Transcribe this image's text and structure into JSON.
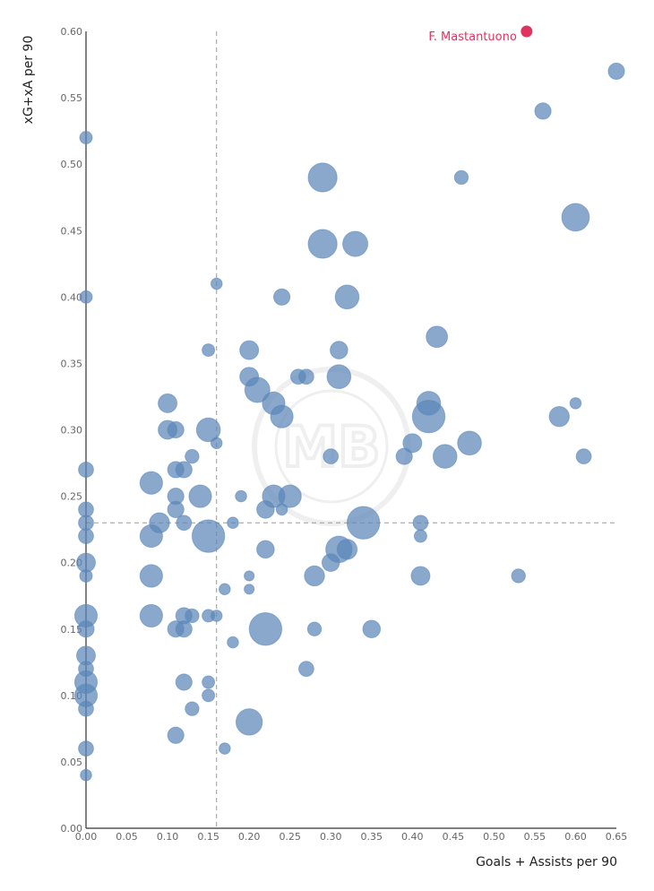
{
  "colors": {
    "point": "#5b86b8",
    "highlight": "#e0335e",
    "axis": "#333333",
    "refline": "#9a9a9a"
  },
  "watermark": {
    "text": "MB"
  },
  "chart_data": {
    "type": "scatter",
    "title": "",
    "xlabel": "Goals + Assists per 90",
    "ylabel": "xG+xA per 90",
    "xlim": [
      0,
      0.65
    ],
    "ylim": [
      0,
      0.6
    ],
    "xticks": [
      "0.00",
      "0.05",
      "0.10",
      "0.15",
      "0.20",
      "0.25",
      "0.30",
      "0.35",
      "0.40",
      "0.45",
      "0.50",
      "0.55",
      "0.60",
      "0.65"
    ],
    "yticks": [
      "0.00",
      "0.05",
      "0.10",
      "0.15",
      "0.20",
      "0.25",
      "0.30",
      "0.35",
      "0.40",
      "0.45",
      "0.50",
      "0.55",
      "0.60"
    ],
    "reference_lines": {
      "x": 0.16,
      "y": 0.23,
      "style": "dashed"
    },
    "grid": false,
    "size_encoding": "relative bubble size (unlabelled)",
    "highlight": {
      "label": "F. Mastantuono",
      "x": 0.54,
      "y": 0.6
    },
    "points": [
      {
        "x": 0.0,
        "y": 0.52,
        "s": 1
      },
      {
        "x": 0.0,
        "y": 0.4,
        "s": 1
      },
      {
        "x": 0.0,
        "y": 0.27,
        "s": 1.2
      },
      {
        "x": 0.0,
        "y": 0.24,
        "s": 1.2
      },
      {
        "x": 0.0,
        "y": 0.23,
        "s": 1.2
      },
      {
        "x": 0.0,
        "y": 0.22,
        "s": 1.2
      },
      {
        "x": 0.0,
        "y": 0.2,
        "s": 1.5
      },
      {
        "x": 0.0,
        "y": 0.19,
        "s": 1
      },
      {
        "x": 0.0,
        "y": 0.16,
        "s": 1.8
      },
      {
        "x": 0.0,
        "y": 0.15,
        "s": 1.3
      },
      {
        "x": 0.0,
        "y": 0.13,
        "s": 1.5
      },
      {
        "x": 0.0,
        "y": 0.12,
        "s": 1.2
      },
      {
        "x": 0.0,
        "y": 0.11,
        "s": 1.8
      },
      {
        "x": 0.0,
        "y": 0.1,
        "s": 1.8
      },
      {
        "x": 0.0,
        "y": 0.09,
        "s": 1.2
      },
      {
        "x": 0.0,
        "y": 0.06,
        "s": 1.2
      },
      {
        "x": 0.0,
        "y": 0.04,
        "s": 0.9
      },
      {
        "x": 0.08,
        "y": 0.26,
        "s": 1.8
      },
      {
        "x": 0.08,
        "y": 0.22,
        "s": 1.8
      },
      {
        "x": 0.08,
        "y": 0.19,
        "s": 1.8
      },
      {
        "x": 0.08,
        "y": 0.16,
        "s": 1.8
      },
      {
        "x": 0.09,
        "y": 0.23,
        "s": 1.6
      },
      {
        "x": 0.1,
        "y": 0.32,
        "s": 1.5
      },
      {
        "x": 0.1,
        "y": 0.3,
        "s": 1.5
      },
      {
        "x": 0.11,
        "y": 0.3,
        "s": 1.3
      },
      {
        "x": 0.11,
        "y": 0.27,
        "s": 1.3
      },
      {
        "x": 0.11,
        "y": 0.25,
        "s": 1.3
      },
      {
        "x": 0.11,
        "y": 0.24,
        "s": 1.3
      },
      {
        "x": 0.11,
        "y": 0.15,
        "s": 1.3
      },
      {
        "x": 0.11,
        "y": 0.07,
        "s": 1.3
      },
      {
        "x": 0.12,
        "y": 0.27,
        "s": 1.3
      },
      {
        "x": 0.12,
        "y": 0.23,
        "s": 1.2
      },
      {
        "x": 0.12,
        "y": 0.16,
        "s": 1.3
      },
      {
        "x": 0.12,
        "y": 0.15,
        "s": 1.3
      },
      {
        "x": 0.12,
        "y": 0.11,
        "s": 1.3
      },
      {
        "x": 0.13,
        "y": 0.28,
        "s": 1.1
      },
      {
        "x": 0.13,
        "y": 0.16,
        "s": 1.1
      },
      {
        "x": 0.13,
        "y": 0.09,
        "s": 1.1
      },
      {
        "x": 0.14,
        "y": 0.25,
        "s": 1.8
      },
      {
        "x": 0.15,
        "y": 0.36,
        "s": 1
      },
      {
        "x": 0.15,
        "y": 0.3,
        "s": 1.9
      },
      {
        "x": 0.15,
        "y": 0.22,
        "s": 2.6
      },
      {
        "x": 0.15,
        "y": 0.16,
        "s": 1
      },
      {
        "x": 0.15,
        "y": 0.11,
        "s": 1
      },
      {
        "x": 0.15,
        "y": 0.1,
        "s": 1
      },
      {
        "x": 0.16,
        "y": 0.41,
        "s": 0.9
      },
      {
        "x": 0.16,
        "y": 0.29,
        "s": 0.9
      },
      {
        "x": 0.16,
        "y": 0.16,
        "s": 0.9
      },
      {
        "x": 0.17,
        "y": 0.18,
        "s": 0.9
      },
      {
        "x": 0.17,
        "y": 0.06,
        "s": 0.9
      },
      {
        "x": 0.18,
        "y": 0.23,
        "s": 0.9
      },
      {
        "x": 0.18,
        "y": 0.14,
        "s": 0.9
      },
      {
        "x": 0.19,
        "y": 0.25,
        "s": 0.9
      },
      {
        "x": 0.2,
        "y": 0.36,
        "s": 1.5
      },
      {
        "x": 0.2,
        "y": 0.34,
        "s": 1.5
      },
      {
        "x": 0.2,
        "y": 0.19,
        "s": 0.8
      },
      {
        "x": 0.2,
        "y": 0.18,
        "s": 0.8
      },
      {
        "x": 0.2,
        "y": 0.08,
        "s": 2.1
      },
      {
        "x": 0.21,
        "y": 0.33,
        "s": 2.0
      },
      {
        "x": 0.22,
        "y": 0.24,
        "s": 1.4
      },
      {
        "x": 0.22,
        "y": 0.21,
        "s": 1.4
      },
      {
        "x": 0.22,
        "y": 0.15,
        "s": 2.6
      },
      {
        "x": 0.23,
        "y": 0.32,
        "s": 1.8
      },
      {
        "x": 0.23,
        "y": 0.25,
        "s": 1.8
      },
      {
        "x": 0.24,
        "y": 0.4,
        "s": 1.3
      },
      {
        "x": 0.24,
        "y": 0.31,
        "s": 1.8
      },
      {
        "x": 0.24,
        "y": 0.24,
        "s": 0.9
      },
      {
        "x": 0.25,
        "y": 0.25,
        "s": 1.8
      },
      {
        "x": 0.26,
        "y": 0.34,
        "s": 1.2
      },
      {
        "x": 0.27,
        "y": 0.34,
        "s": 1.2
      },
      {
        "x": 0.27,
        "y": 0.12,
        "s": 1.2
      },
      {
        "x": 0.28,
        "y": 0.19,
        "s": 1.6
      },
      {
        "x": 0.28,
        "y": 0.15,
        "s": 1.1
      },
      {
        "x": 0.29,
        "y": 0.49,
        "s": 2.3
      },
      {
        "x": 0.29,
        "y": 0.44,
        "s": 2.3
      },
      {
        "x": 0.3,
        "y": 0.28,
        "s": 1.2
      },
      {
        "x": 0.3,
        "y": 0.2,
        "s": 1.4
      },
      {
        "x": 0.31,
        "y": 0.36,
        "s": 1.4
      },
      {
        "x": 0.31,
        "y": 0.34,
        "s": 1.9
      },
      {
        "x": 0.31,
        "y": 0.21,
        "s": 2.1
      },
      {
        "x": 0.32,
        "y": 0.4,
        "s": 1.9
      },
      {
        "x": 0.32,
        "y": 0.21,
        "s": 1.6
      },
      {
        "x": 0.33,
        "y": 0.44,
        "s": 2.0
      },
      {
        "x": 0.34,
        "y": 0.23,
        "s": 2.6
      },
      {
        "x": 0.35,
        "y": 0.15,
        "s": 1.4
      },
      {
        "x": 0.39,
        "y": 0.28,
        "s": 1.3
      },
      {
        "x": 0.4,
        "y": 0.29,
        "s": 1.5
      },
      {
        "x": 0.41,
        "y": 0.23,
        "s": 1.2
      },
      {
        "x": 0.41,
        "y": 0.22,
        "s": 1.0
      },
      {
        "x": 0.41,
        "y": 0.19,
        "s": 1.5
      },
      {
        "x": 0.42,
        "y": 0.32,
        "s": 1.9
      },
      {
        "x": 0.42,
        "y": 0.31,
        "s": 2.6
      },
      {
        "x": 0.43,
        "y": 0.37,
        "s": 1.7
      },
      {
        "x": 0.44,
        "y": 0.28,
        "s": 1.9
      },
      {
        "x": 0.46,
        "y": 0.49,
        "s": 1.1
      },
      {
        "x": 0.47,
        "y": 0.29,
        "s": 1.9
      },
      {
        "x": 0.53,
        "y": 0.19,
        "s": 1.1
      },
      {
        "x": 0.56,
        "y": 0.54,
        "s": 1.3
      },
      {
        "x": 0.58,
        "y": 0.31,
        "s": 1.6
      },
      {
        "x": 0.6,
        "y": 0.46,
        "s": 2.2
      },
      {
        "x": 0.6,
        "y": 0.32,
        "s": 0.9
      },
      {
        "x": 0.61,
        "y": 0.28,
        "s": 1.2
      },
      {
        "x": 0.65,
        "y": 0.57,
        "s": 1.3
      }
    ]
  }
}
